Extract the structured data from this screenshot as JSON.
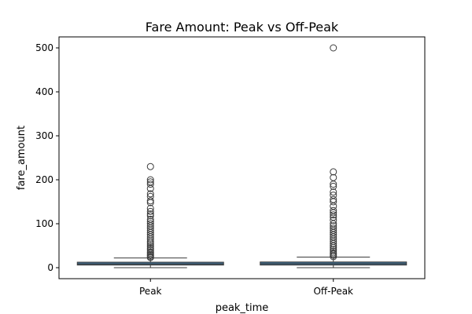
{
  "chart_data": {
    "type": "box",
    "title": "Fare Amount: Peak vs Off-Peak",
    "xlabel": "peak_time",
    "ylabel": "fare_amount",
    "categories": [
      "Peak",
      "Off-Peak"
    ],
    "ylim": [
      -25,
      525
    ],
    "yticks": [
      0,
      100,
      200,
      300,
      400,
      500
    ],
    "grid": false,
    "box_color": "#3d6a8c",
    "line_color": "#3c3c3c",
    "boxes": [
      {
        "category": "Peak",
        "whisker_low": 0,
        "q1": 6,
        "median": 8.5,
        "q3": 12.5,
        "whisker_high": 22,
        "outliers": [
          23,
          25,
          28,
          30,
          33,
          36,
          40,
          44,
          48,
          52,
          56,
          60,
          65,
          70,
          75,
          80,
          85,
          90,
          95,
          100,
          105,
          110,
          118,
          122,
          128,
          135,
          148,
          152,
          162,
          168,
          180,
          190,
          195,
          200,
          230
        ]
      },
      {
        "category": "Off-Peak",
        "whisker_low": 0,
        "q1": 6,
        "median": 9,
        "q3": 13,
        "whisker_high": 24,
        "outliers": [
          25,
          28,
          31,
          34,
          38,
          42,
          46,
          50,
          55,
          60,
          65,
          70,
          75,
          80,
          85,
          90,
          95,
          100,
          108,
          115,
          120,
          125,
          130,
          140,
          150,
          155,
          165,
          172,
          185,
          190,
          205,
          218,
          500
        ]
      }
    ]
  }
}
